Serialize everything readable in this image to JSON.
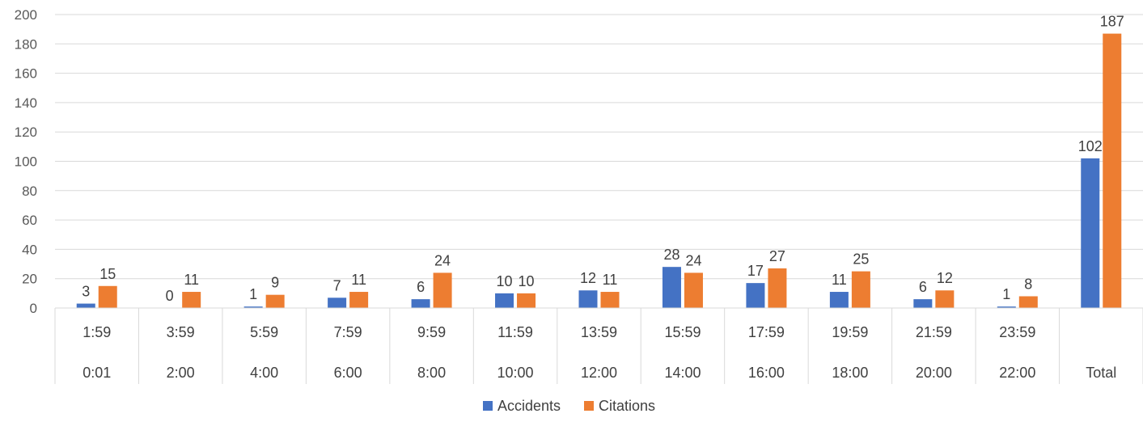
{
  "chart_data": {
    "type": "bar",
    "categories": [
      "1:59 0:01",
      "3:59 2:00",
      "5:59 4:00",
      "7:59 6:00",
      "9:59 8:00",
      "11:59 10:00",
      "13:59 12:00",
      "15:59 14:00",
      "17:59 16:00",
      "19:59 18:00",
      "21:59 20:00",
      "23:59 22:00",
      "Total"
    ],
    "category_rows": {
      "top": [
        "1:59",
        "3:59",
        "5:59",
        "7:59",
        "9:59",
        "11:59",
        "13:59",
        "15:59",
        "17:59",
        "19:59",
        "21:59",
        "23:59",
        ""
      ],
      "bottom": [
        "0:01",
        "2:00",
        "4:00",
        "6:00",
        "8:00",
        "10:00",
        "12:00",
        "14:00",
        "16:00",
        "18:00",
        "20:00",
        "22:00",
        "Total"
      ]
    },
    "series": [
      {
        "name": "Accidents",
        "color": "#4472C4",
        "values": [
          3,
          0,
          1,
          7,
          6,
          10,
          12,
          28,
          17,
          11,
          6,
          1,
          102
        ]
      },
      {
        "name": "Citations",
        "color": "#ED7D31",
        "values": [
          15,
          11,
          9,
          11,
          24,
          10,
          11,
          24,
          27,
          25,
          12,
          8,
          187
        ]
      }
    ],
    "ylim": [
      0,
      200
    ],
    "yticks": [
      0,
      20,
      40,
      60,
      80,
      100,
      120,
      140,
      160,
      180,
      200
    ],
    "grid": true,
    "data_labels": true,
    "legend_position": "bottom"
  }
}
